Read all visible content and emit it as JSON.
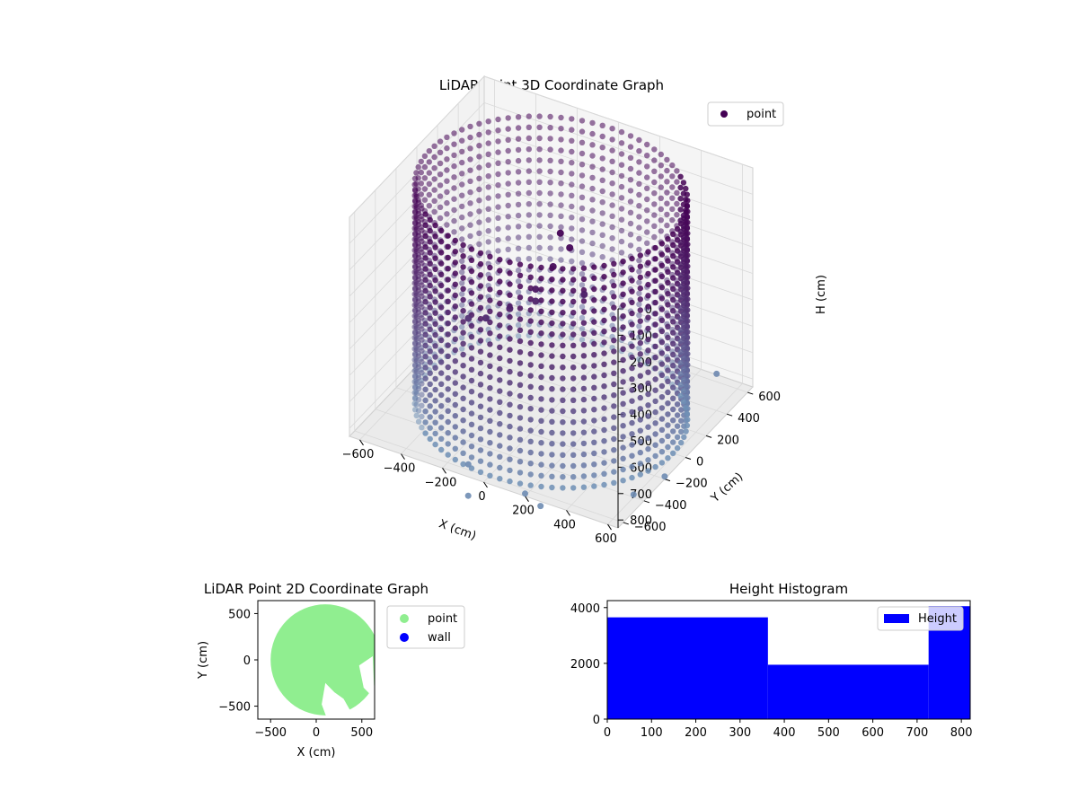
{
  "chart_data": [
    {
      "type": "scatter",
      "projection": "3d",
      "title": "LiDAR Point 3D Coordinate Graph",
      "xlabel": "X (cm)",
      "ylabel": "Y (cm)",
      "zlabel": "H (cm)",
      "xlim": [
        -650,
        650
      ],
      "ylim": [
        -650,
        650
      ],
      "zlim": [
        0,
        830
      ],
      "z_inverted": true,
      "x_ticks": [
        "−600",
        "−400",
        "−200",
        "0",
        "200",
        "400",
        "600"
      ],
      "y_ticks": [
        "−600",
        "−400",
        "−200",
        "0",
        "200",
        "400",
        "600"
      ],
      "z_ticks": [
        "0",
        "100",
        "200",
        "300",
        "400",
        "500",
        "600",
        "700",
        "800"
      ],
      "grid": true,
      "colormap": "viridis-dark",
      "colors": {
        "top": "#440154",
        "bottom": "#6f8fb5",
        "pane": "#f2f2f2",
        "grid": "#d9d9d9"
      },
      "legend": {
        "position": "top-right",
        "entries": [
          {
            "label": "point",
            "color": "#440154"
          }
        ]
      },
      "shape": {
        "wall": {
          "radius_cm": 590,
          "height_range_cm": [
            0,
            830
          ]
        },
        "ceiling_hole_sample": [
          {
            "x": 120,
            "y": -150,
            "h": 60
          },
          {
            "x": 150,
            "y": -120,
            "h": 120
          },
          {
            "x": 100,
            "y": -180,
            "h": 180
          },
          {
            "x": 50,
            "y": -250,
            "h": 250
          },
          {
            "x": -50,
            "y": -300,
            "h": 330
          },
          {
            "x": -150,
            "y": -330,
            "h": 380
          },
          {
            "x": -250,
            "y": -300,
            "h": 420
          },
          {
            "x": 0,
            "y": -150,
            "h": 350
          },
          {
            "x": 200,
            "y": -80,
            "h": 300
          }
        ],
        "floor_outliers_sample": [
          {
            "x": 300,
            "y": -700,
            "h": 820
          },
          {
            "x": 200,
            "y": -650,
            "h": 820
          },
          {
            "x": 0,
            "y": -800,
            "h": 820
          },
          {
            "x": 650,
            "y": -200,
            "h": 820
          },
          {
            "x": 600,
            "y": -400,
            "h": 820
          },
          {
            "x": -100,
            "y": -600,
            "h": 810
          },
          {
            "x": 500,
            "y": 600,
            "h": 800
          }
        ]
      }
    },
    {
      "type": "scatter",
      "title": "LiDAR Point 2D Coordinate Graph",
      "xlabel": "X (cm)",
      "ylabel": "Y (cm)",
      "xlim": [
        -640,
        640
      ],
      "ylim": [
        -640,
        640
      ],
      "x_ticks": [
        "−500",
        "0",
        "500"
      ],
      "y_ticks": [
        "−500",
        "0",
        "500"
      ],
      "legend": {
        "position": "outside-right",
        "entries": [
          {
            "label": "point",
            "color": "#90ee90"
          },
          {
            "label": "wall",
            "color": "#0000ff"
          }
        ]
      },
      "disk": {
        "center": [
          100,
          0
        ],
        "radius": 600,
        "color": "#90ee90"
      }
    },
    {
      "type": "bar",
      "title": "Height Histogram",
      "bins": [
        {
          "start": 0,
          "end": 363,
          "count": 3650
        },
        {
          "start": 363,
          "end": 726,
          "count": 1950
        },
        {
          "start": 726,
          "end": 820,
          "count": 4050
        }
      ],
      "xlim": [
        0,
        820
      ],
      "ylim": [
        0,
        4250
      ],
      "x_ticks": [
        "0",
        "100",
        "200",
        "300",
        "400",
        "500",
        "600",
        "700",
        "800"
      ],
      "y_ticks": [
        "0",
        "2000",
        "4000"
      ],
      "color": "#0000ff",
      "legend": {
        "position": "top-right",
        "entries": [
          {
            "label": "Height",
            "color": "#0000ff"
          }
        ]
      }
    }
  ]
}
